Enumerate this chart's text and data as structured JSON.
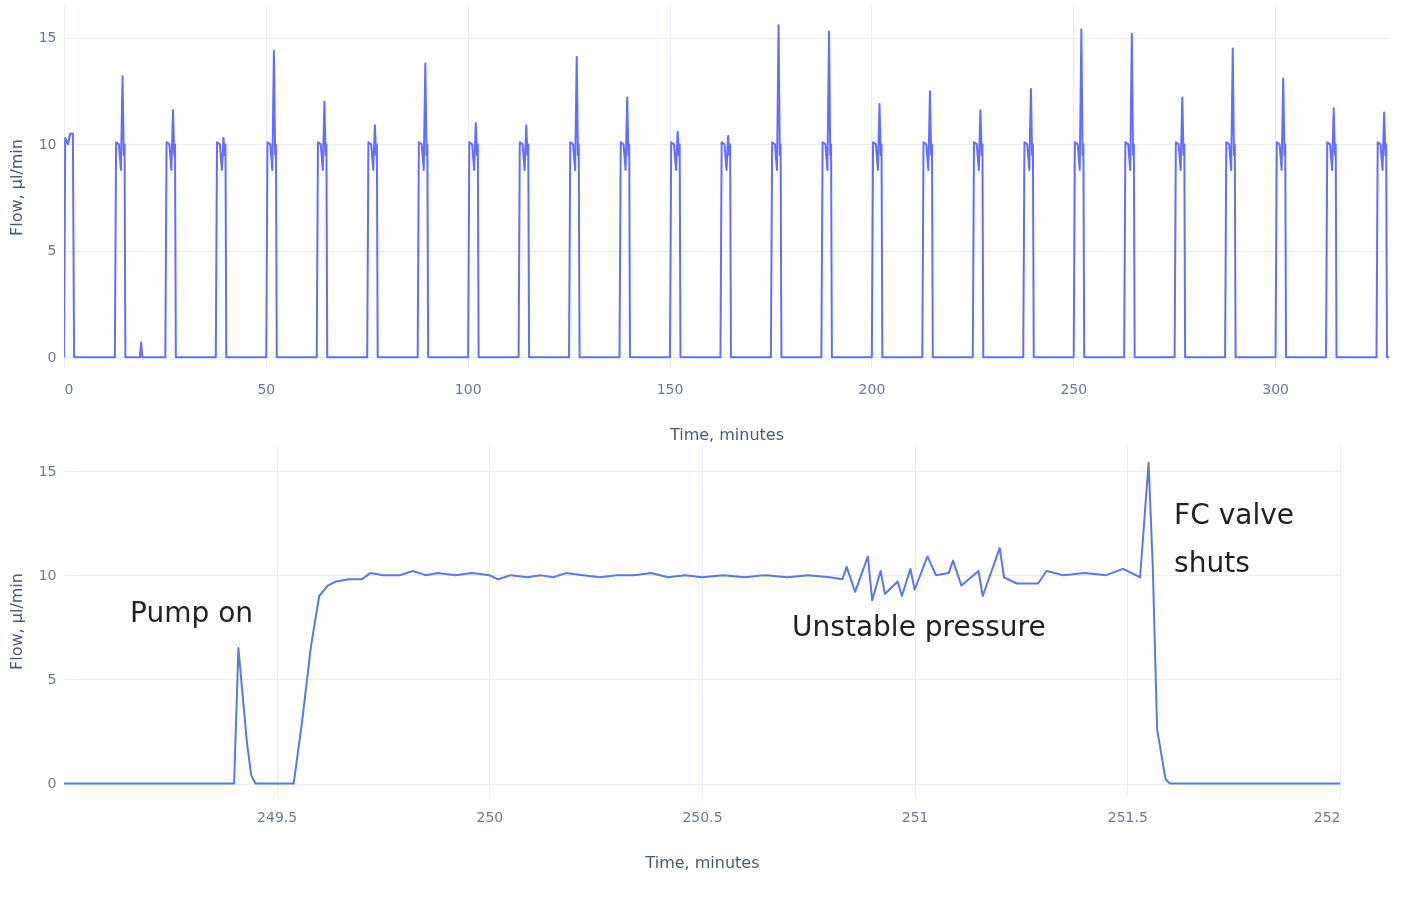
{
  "chart_data": [
    {
      "type": "line",
      "xlabel": "Time, minutes",
      "ylabel": "Flow, µl/min",
      "xlim": [
        0,
        328.2
      ],
      "ylim": [
        -0.5,
        16.5
      ],
      "xticks": [
        0,
        50,
        100,
        150,
        200,
        250,
        300
      ],
      "yticks": [
        0,
        5,
        10,
        15
      ],
      "grid": true,
      "marker": "none",
      "line_style": "solid",
      "series": [
        {
          "color": "#636efa",
          "x": [
            0,
            0.3,
            1.0,
            1.5,
            2.2,
            2.5,
            12.6,
            12.9,
            13.6,
            14.1,
            14.5,
            14.8,
            15.0,
            15.2,
            18.8,
            19.1,
            19.4,
            25.1,
            25.4,
            26.1,
            26.6,
            27.0,
            27.3,
            27.5,
            27.7,
            37.6,
            37.9,
            38.6,
            39.1,
            39.5,
            39.8,
            40.0,
            40.2,
            50.1,
            50.4,
            51.1,
            51.6,
            52.0,
            52.3,
            52.5,
            52.7,
            62.6,
            62.9,
            63.6,
            64.1,
            64.5,
            64.8,
            65.0,
            65.2,
            75.1,
            75.4,
            76.1,
            76.6,
            77.0,
            77.3,
            77.5,
            77.7,
            87.6,
            87.9,
            88.6,
            89.1,
            89.5,
            89.8,
            90.0,
            90.2,
            100.1,
            100.4,
            101.1,
            101.6,
            102.0,
            102.3,
            102.5,
            102.7,
            112.6,
            112.9,
            113.6,
            114.1,
            114.5,
            114.8,
            115.0,
            115.2,
            125.1,
            125.4,
            126.1,
            126.6,
            127.0,
            127.3,
            127.5,
            127.7,
            137.6,
            137.9,
            138.6,
            139.1,
            139.5,
            139.8,
            140.0,
            140.2,
            150.1,
            150.4,
            151.1,
            151.6,
            152.0,
            152.3,
            152.5,
            152.7,
            162.6,
            162.9,
            163.6,
            164.1,
            164.5,
            164.8,
            165.0,
            165.2,
            175.1,
            175.4,
            176.1,
            176.6,
            177.0,
            177.3,
            177.5,
            177.7,
            187.6,
            187.9,
            188.6,
            189.1,
            189.5,
            189.8,
            190.0,
            190.2,
            200.1,
            200.4,
            201.1,
            201.6,
            202.0,
            202.3,
            202.5,
            202.7,
            212.6,
            212.9,
            213.6,
            214.1,
            214.5,
            214.8,
            215.0,
            215.2,
            225.1,
            225.4,
            226.1,
            226.6,
            227.0,
            227.3,
            227.5,
            227.7,
            237.6,
            237.9,
            238.6,
            239.1,
            239.5,
            239.8,
            240.0,
            240.2,
            250.1,
            250.4,
            251.1,
            251.6,
            252.0,
            252.3,
            252.5,
            252.7,
            262.6,
            262.9,
            263.6,
            264.1,
            264.5,
            264.8,
            265.0,
            265.2,
            275.1,
            275.4,
            276.1,
            276.6,
            277.0,
            277.3,
            277.5,
            277.7,
            287.6,
            287.9,
            288.6,
            289.1,
            289.5,
            289.8,
            290.0,
            290.2,
            300.1,
            300.4,
            301.1,
            301.6,
            302.0,
            302.3,
            302.5,
            302.7,
            312.6,
            312.9,
            313.6,
            314.1,
            314.5,
            314.8,
            315.0,
            315.2,
            325.1,
            325.4,
            326.1,
            326.6,
            327.0,
            327.3,
            327.5,
            327.7,
            328.2
          ],
          "values": [
            0,
            10.3,
            10.0,
            10.5,
            10.5,
            0,
            0,
            10.1,
            10.0,
            8.8,
            13.2,
            9.5,
            10.0,
            0,
            0,
            0.7,
            0,
            0,
            10.1,
            10.0,
            8.8,
            11.6,
            9.5,
            10.0,
            0,
            0,
            10.1,
            10.0,
            8.8,
            10.3,
            9.5,
            10.0,
            0,
            0,
            10.1,
            10.0,
            8.8,
            14.4,
            9.5,
            10.0,
            0,
            0,
            10.1,
            10.0,
            8.8,
            12.0,
            9.5,
            10.0,
            0,
            0,
            10.1,
            10.0,
            8.8,
            10.9,
            9.5,
            10.0,
            0,
            0,
            10.1,
            10.0,
            8.8,
            13.8,
            9.5,
            10.0,
            0,
            0,
            10.1,
            10.0,
            8.8,
            11.0,
            9.5,
            10.0,
            0,
            0,
            10.1,
            10.0,
            8.8,
            10.9,
            9.5,
            10.0,
            0,
            0,
            10.1,
            10.0,
            8.8,
            14.1,
            9.5,
            10.0,
            0,
            0,
            10.1,
            10.0,
            8.8,
            12.2,
            9.5,
            10.0,
            0,
            0,
            10.1,
            10.0,
            8.8,
            10.6,
            9.5,
            10.0,
            0,
            0,
            10.1,
            10.0,
            8.8,
            10.4,
            9.5,
            10.0,
            0,
            0,
            10.1,
            10.0,
            8.8,
            15.6,
            9.5,
            10.0,
            0,
            0,
            10.1,
            10.0,
            8.8,
            15.3,
            9.5,
            10.0,
            0,
            0,
            10.1,
            10.0,
            8.8,
            11.9,
            9.5,
            10.0,
            0,
            0,
            10.1,
            10.0,
            8.8,
            12.5,
            9.5,
            10.0,
            0,
            0,
            10.1,
            10.0,
            8.8,
            11.6,
            9.5,
            10.0,
            0,
            0,
            10.1,
            10.0,
            8.8,
            12.6,
            9.5,
            10.0,
            0,
            0,
            10.1,
            10.0,
            8.8,
            15.4,
            9.5,
            10.0,
            0,
            0,
            10.1,
            10.0,
            8.8,
            15.2,
            9.5,
            10.0,
            0,
            0,
            10.1,
            10.0,
            8.8,
            12.2,
            9.5,
            10.0,
            0,
            0,
            10.1,
            10.0,
            8.8,
            14.5,
            9.5,
            10.0,
            0,
            0,
            10.1,
            10.0,
            8.8,
            13.1,
            9.5,
            10.0,
            0,
            0,
            10.1,
            10.0,
            8.8,
            11.7,
            9.5,
            10.0,
            0,
            0,
            10.1,
            10.0,
            8.8,
            11.5,
            9.5,
            10.0,
            0,
            0
          ]
        }
      ]
    },
    {
      "type": "line",
      "xlabel": "Time, minutes",
      "ylabel": "Flow, µl/min",
      "xlim": [
        249.0,
        252.0
      ],
      "ylim": [
        -0.6,
        16.2
      ],
      "xticks": [
        249.5,
        250,
        250.5,
        251,
        251.5,
        252
      ],
      "yticks": [
        0,
        5,
        10,
        15
      ],
      "grid": true,
      "marker": "none",
      "line_style": "solid",
      "annotations": [
        "Pump on",
        "Unstable pressure",
        "FC valve\nshuts"
      ],
      "series": [
        {
          "color": "#5b78e6",
          "x": [
            249.0,
            249.4,
            249.41,
            249.43,
            249.44,
            249.45,
            249.54,
            249.56,
            249.58,
            249.6,
            249.62,
            249.64,
            249.67,
            249.7,
            249.72,
            249.75,
            249.79,
            249.82,
            249.85,
            249.88,
            249.92,
            249.96,
            250.0,
            250.02,
            250.05,
            250.09,
            250.12,
            250.15,
            250.18,
            250.22,
            250.26,
            250.3,
            250.34,
            250.38,
            250.42,
            250.46,
            250.5,
            250.55,
            250.6,
            250.65,
            250.7,
            250.75,
            250.8,
            250.83,
            250.84,
            250.86,
            250.89,
            250.9,
            250.92,
            250.93,
            250.96,
            250.97,
            250.99,
            251.0,
            251.03,
            251.05,
            251.08,
            251.09,
            251.11,
            251.15,
            251.16,
            251.2,
            251.21,
            251.24,
            251.29,
            251.31,
            251.35,
            251.4,
            251.45,
            251.49,
            251.53,
            251.55,
            251.56,
            251.57,
            251.59,
            251.6,
            252.0
          ],
          "values": [
            0,
            0,
            6.5,
            2.0,
            0.4,
            0,
            0,
            3.0,
            6.5,
            9.0,
            9.5,
            9.7,
            9.8,
            9.8,
            10.1,
            10.0,
            10.0,
            10.2,
            10.0,
            10.1,
            10.0,
            10.1,
            10.0,
            9.8,
            10.0,
            9.9,
            10.0,
            9.9,
            10.1,
            10.0,
            9.9,
            10.0,
            10.0,
            10.1,
            9.9,
            10.0,
            9.9,
            10.0,
            9.9,
            10.0,
            9.9,
            10.0,
            9.9,
            9.8,
            10.4,
            9.2,
            10.9,
            8.8,
            10.2,
            9.1,
            9.7,
            9.0,
            10.3,
            9.3,
            10.9,
            10.0,
            10.1,
            10.7,
            9.5,
            10.2,
            9.0,
            11.3,
            9.9,
            9.6,
            9.6,
            10.2,
            10.0,
            10.1,
            10.0,
            10.3,
            9.9,
            15.4,
            10.3,
            2.6,
            0.2,
            0,
            0
          ]
        }
      ]
    }
  ]
}
